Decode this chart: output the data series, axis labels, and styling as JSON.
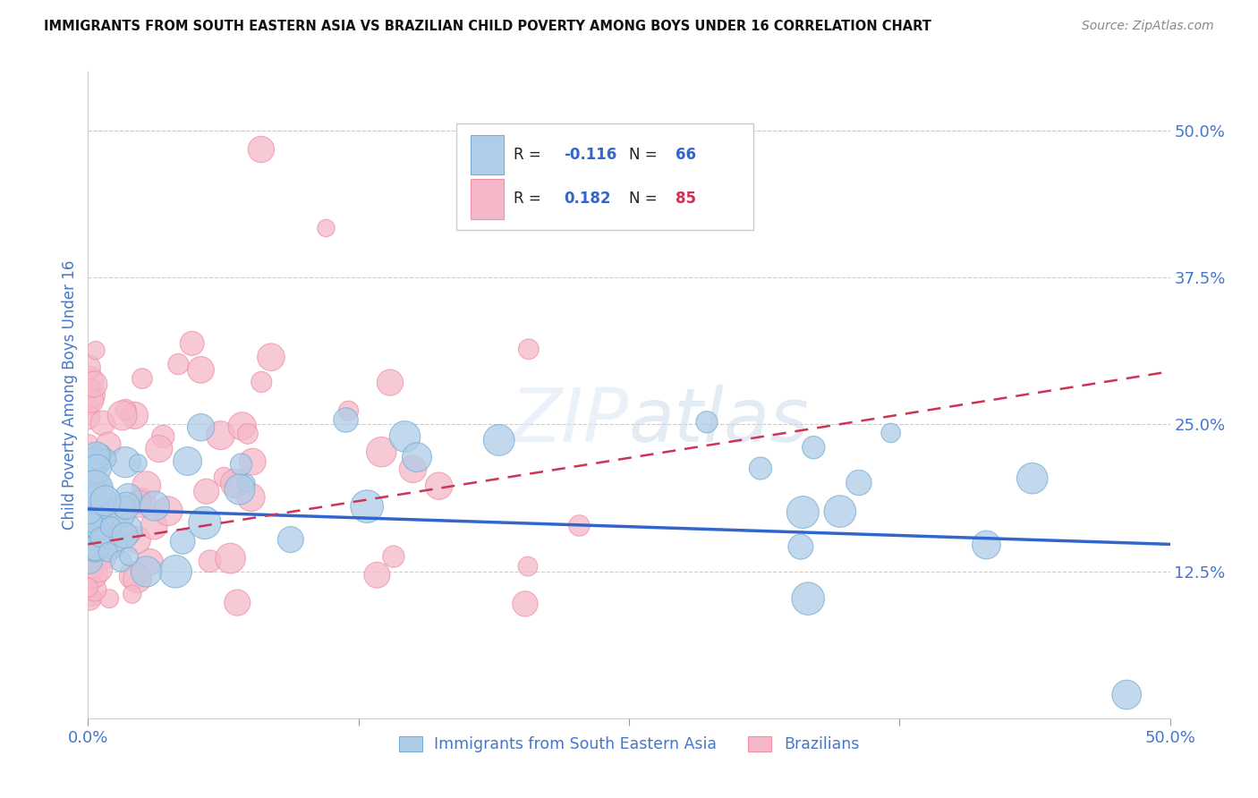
{
  "title": "IMMIGRANTS FROM SOUTH EASTERN ASIA VS BRAZILIAN CHILD POVERTY AMONG BOYS UNDER 16 CORRELATION CHART",
  "source": "Source: ZipAtlas.com",
  "ylabel": "Child Poverty Among Boys Under 16",
  "right_yticks": [
    "50.0%",
    "37.5%",
    "25.0%",
    "12.5%"
  ],
  "right_ytick_vals": [
    0.5,
    0.375,
    0.25,
    0.125
  ],
  "legend_label_blue": "Immigrants from South Eastern Asia",
  "legend_label_pink": "Brazilians",
  "R_blue": -0.116,
  "N_blue": 66,
  "R_pink": 0.182,
  "N_pink": 85,
  "blue_fill": "#aecde8",
  "pink_fill": "#f5b8c8",
  "blue_edge": "#7aadd4",
  "pink_edge": "#f090a8",
  "blue_line_color": "#3366cc",
  "pink_line_color": "#cc3355",
  "title_color": "#111111",
  "source_color": "#888888",
  "axis_label_color": "#4477cc",
  "grid_color": "#cccccc",
  "background_color": "#ffffff",
  "xmin": 0.0,
  "xmax": 0.5,
  "ymin": 0.0,
  "ymax": 0.55,
  "blue_line_y0": 0.178,
  "blue_line_y1": 0.148,
  "pink_line_y0": 0.148,
  "pink_line_y1": 0.295
}
